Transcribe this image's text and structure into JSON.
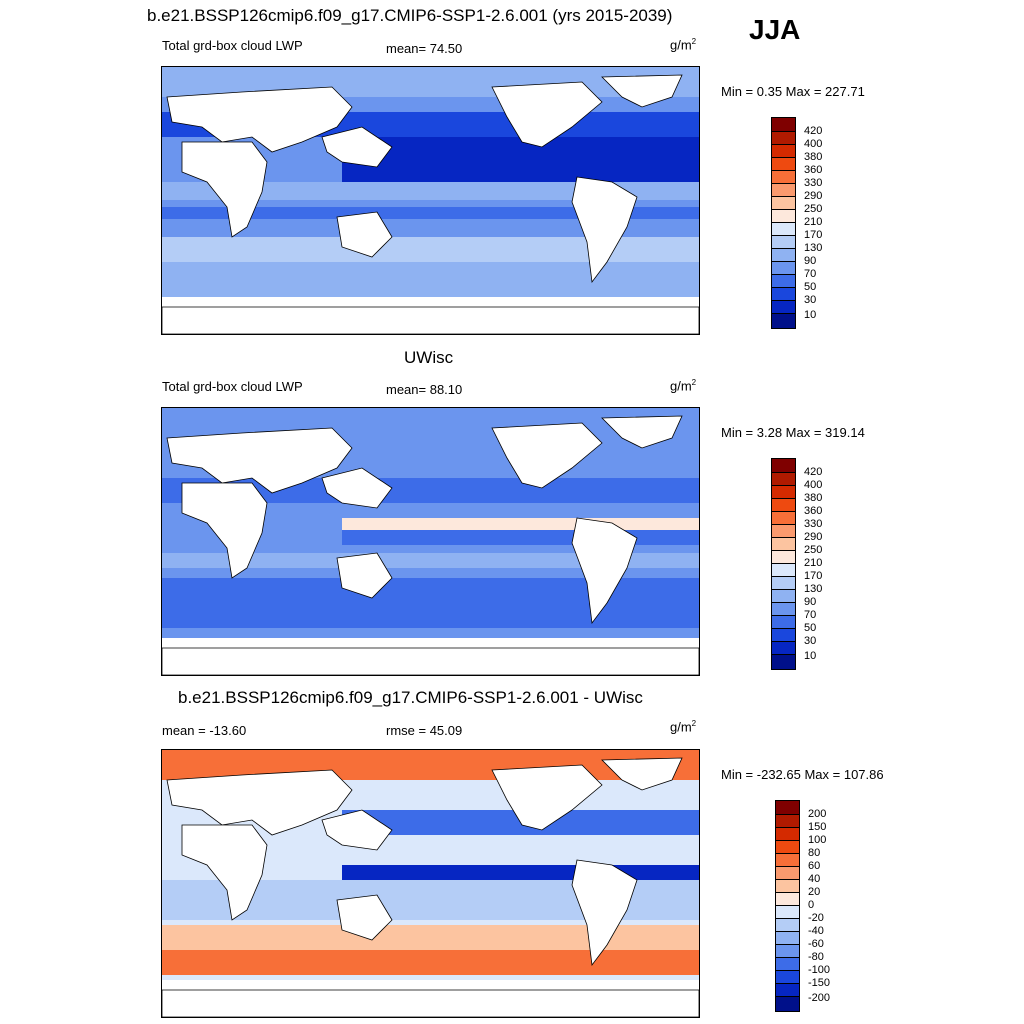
{
  "season": "JJA",
  "panels": [
    {
      "title": "b.e21.BSSP126cmip6.f09_g17.CMIP6-SSP1-2.6.001 (yrs 2015-2039)",
      "left_label": "Total grd-box cloud LWP",
      "center_label": "mean=  74.50",
      "unit": "g/m",
      "unit_sup": "2",
      "minmax": "Min =   0.35 Max = 227.71"
    },
    {
      "title": "UWisc",
      "left_label": "Total grd-box cloud LWP",
      "center_label": "mean=  88.10",
      "unit": "g/m",
      "unit_sup": "2",
      "minmax": "Min =   3.28 Max = 319.14"
    },
    {
      "title": "b.e21.BSSP126cmip6.f09_g17.CMIP6-SSP1-2.6.001 - UWisc",
      "left_label": "mean = -13.60",
      "center_label": "rmse =  45.09",
      "unit": "g/m",
      "unit_sup": "2",
      "minmax": "Min = -232.65 Max = 107.86"
    }
  ],
  "colorbars": {
    "lwp": {
      "labels": [
        "420",
        "400",
        "380",
        "360",
        "330",
        "290",
        "250",
        "210",
        "170",
        "130",
        "90",
        "70",
        "50",
        "30",
        "10"
      ],
      "colors": [
        "#7f0000",
        "#b01a00",
        "#d42a00",
        "#ee4a10",
        "#f76f38",
        "#fa9a6e",
        "#fcc4a0",
        "#fde8dc",
        "#dbe8fb",
        "#b4cdf6",
        "#8fb2f2",
        "#6b95ee",
        "#3d6ce8",
        "#1a47dd",
        "#0626c2",
        "#00108a"
      ]
    },
    "diff": {
      "labels": [
        "200",
        "150",
        "100",
        "80",
        "60",
        "40",
        "20",
        "0",
        "-20",
        "-40",
        "-60",
        "-80",
        "-100",
        "-150",
        "-200"
      ],
      "colors": [
        "#7f0000",
        "#b01a00",
        "#d42a00",
        "#ee4a10",
        "#f76f38",
        "#fa9a6e",
        "#fcc4a0",
        "#fde8dc",
        "#dbe8fb",
        "#b4cdf6",
        "#8fb2f2",
        "#6b95ee",
        "#3d6ce8",
        "#1a47dd",
        "#0626c2",
        "#00108a"
      ]
    }
  }
}
